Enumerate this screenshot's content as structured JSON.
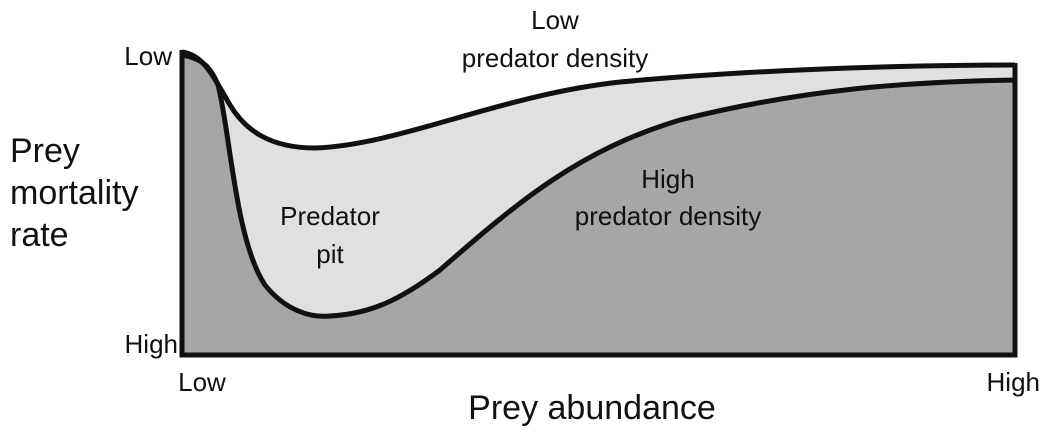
{
  "y_axis": {
    "label": [
      "Prey",
      "mortality",
      "rate"
    ],
    "top": "Low",
    "bottom": "High"
  },
  "x_axis": {
    "label": "Prey abundance",
    "left": "Low",
    "right": "High"
  },
  "curves": [
    {
      "label": [
        "Low",
        "predator density"
      ]
    },
    {
      "label": [
        "High",
        "predator density"
      ]
    }
  ],
  "regions": [
    {
      "label": [
        "Predator",
        "pit"
      ]
    }
  ]
}
